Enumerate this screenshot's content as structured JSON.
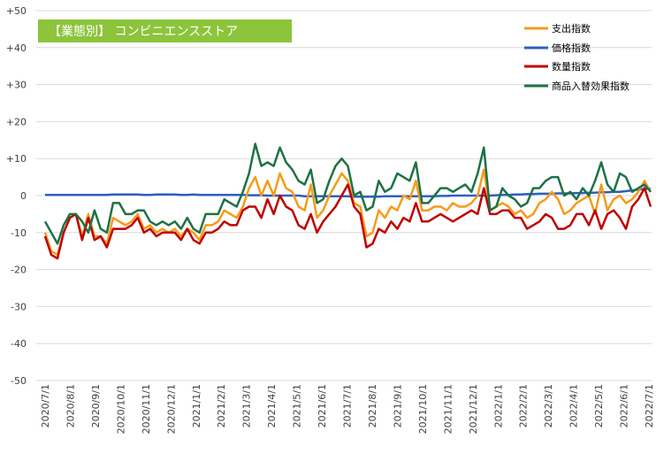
{
  "chart_data": {
    "type": "line",
    "title": "【業態別】 コンビニエンスストア",
    "title_bg": "#8cc43c",
    "xlabel": "",
    "ylabel": "",
    "ylim": [
      -50,
      50
    ],
    "yticks": [
      "+50",
      "+40",
      "+30",
      "+20",
      "+10",
      "0",
      "-10",
      "-20",
      "-30",
      "-40",
      "-50"
    ],
    "ytick_values": [
      50,
      40,
      30,
      20,
      10,
      0,
      -10,
      -20,
      -30,
      -40,
      -50
    ],
    "grid": true,
    "legend_position": "top-right",
    "x_labels": [
      "2020/7/1",
      "2020/8/1",
      "2020/9/1",
      "2020/10/1",
      "2020/11/1",
      "2020/12/1",
      "2021/1/1",
      "2021/2/1",
      "2021/3/1",
      "2021/4/1",
      "2021/5/1",
      "2021/6/1",
      "2021/7/1",
      "2021/8/1",
      "2021/9/1",
      "2021/10/1",
      "2021/11/1",
      "2021/12/1",
      "2022/1/1",
      "2022/2/1",
      "2022/3/1",
      "2022/4/1",
      "2022/5/1",
      "2022/6/1",
      "2022/7/1"
    ],
    "series": [
      {
        "name": "支出指数",
        "color": "#f59c1a",
        "values": [
          -10,
          -15,
          -16,
          -10,
          -6,
          -5,
          -11,
          -5,
          -11,
          -11,
          -13,
          -6,
          -7,
          -8,
          -7,
          -5,
          -9,
          -8,
          -10,
          -9,
          -10,
          -9,
          -11,
          -9,
          -10,
          -12,
          -8,
          -8,
          -7,
          -4,
          -5,
          -6,
          -3,
          2,
          5,
          0,
          4,
          0,
          6,
          2,
          1,
          -3,
          -4,
          3,
          -6,
          -4,
          0,
          3,
          6,
          4,
          -2,
          -3,
          -11,
          -10,
          -4,
          -6,
          -3,
          -4,
          0,
          -1,
          4,
          -4,
          -4,
          -3,
          -3,
          -4,
          -2,
          -3,
          -3,
          -2,
          0,
          7,
          -4,
          -3,
          -2,
          -3,
          -5,
          -4,
          -6,
          -5,
          -2,
          -1,
          1,
          -1,
          -5,
          -4,
          -2,
          -1,
          0,
          -5,
          3,
          -4,
          -1,
          0,
          -2,
          -1,
          1,
          4,
          1
        ],
        "sample_note": ""
      },
      {
        "name": "価格指数",
        "color": "#2e5fc0",
        "values": [
          0.2,
          0.2,
          0.2,
          0.2,
          0.2,
          0.2,
          0.2,
          0.2,
          0.2,
          0.2,
          0.2,
          0.3,
          0.3,
          0.3,
          0.3,
          0.3,
          0.2,
          0.2,
          0.3,
          0.3,
          0.3,
          0.3,
          0.2,
          0.2,
          0.3,
          0.2,
          0.2,
          0.2,
          0.2,
          0.2,
          0.2,
          0.2,
          0.2,
          0.1,
          0.1,
          0.1,
          0,
          0,
          0,
          0,
          0,
          0,
          -0.2,
          -0.2,
          -0.2,
          -0.2,
          -0.2,
          -0.2,
          -0.2,
          -0.2,
          -0.3,
          -0.3,
          -0.3,
          -0.3,
          -0.3,
          -0.2,
          -0.2,
          -0.2,
          -0.2,
          -0.2,
          -0.2,
          -0.2,
          -0.2,
          -0.2,
          -0.1,
          -0.1,
          0,
          0,
          0,
          0,
          0,
          0,
          0,
          0.1,
          0.2,
          0.2,
          0.3,
          0.3,
          0.4,
          0.4,
          0.5,
          0.5,
          0.5,
          0.6,
          0.6,
          0.6,
          0.7,
          0.7,
          0.8,
          0.8,
          0.9,
          0.9,
          1,
          1,
          1.2,
          1.4,
          1.6,
          1.8,
          1.9
        ]
      },
      {
        "name": "数量指数",
        "color": "#c00000",
        "values": [
          -11,
          -16,
          -17,
          -10,
          -6,
          -5,
          -12,
          -6,
          -12,
          -11,
          -14,
          -9,
          -9,
          -9,
          -8,
          -6,
          -10,
          -9,
          -11,
          -10,
          -10,
          -10,
          -12,
          -9,
          -12,
          -13,
          -10,
          -10,
          -9,
          -7,
          -8,
          -8,
          -4,
          -3,
          -3,
          -6,
          -1,
          -5,
          0,
          -3,
          -4,
          -8,
          -9,
          -5,
          -10,
          -7,
          -5,
          -3,
          0,
          3,
          -3,
          -5,
          -14,
          -13,
          -9,
          -10,
          -7,
          -9,
          -6,
          -7,
          -2,
          -7,
          -7,
          -6,
          -5,
          -6,
          -7,
          -6,
          -5,
          -4,
          -5,
          2,
          -5,
          -5,
          -4,
          -4,
          -6,
          -6,
          -9,
          -8,
          -7,
          -5,
          -6,
          -9,
          -9,
          -8,
          -5,
          -5,
          -8,
          -4,
          -9,
          -5,
          -4,
          -6,
          -9,
          -3,
          -1,
          2,
          -3
        ]
      },
      {
        "name": "商品入替効果指数",
        "color": "#1e7145",
        "values": [
          -7,
          -10,
          -13,
          -8,
          -5,
          -5,
          -7,
          -10,
          -4,
          -9,
          -10,
          -2,
          -2,
          -5,
          -5,
          -4,
          -4,
          -7,
          -8,
          -7,
          -8,
          -7,
          -9,
          -6,
          -9,
          -10,
          -5,
          -5,
          -5,
          -1,
          -2,
          -3,
          1,
          6,
          14,
          8,
          9,
          8,
          13,
          9,
          7,
          4,
          3,
          7,
          -2,
          -1,
          4,
          8,
          10,
          8,
          0,
          1,
          -4,
          -3,
          4,
          1,
          2,
          6,
          5,
          4,
          9,
          -2,
          -2,
          0,
          2,
          2,
          1,
          2,
          3,
          1,
          6,
          13,
          -4,
          -3,
          2,
          0,
          -1,
          -3,
          -2,
          2,
          2,
          4,
          5,
          5,
          0,
          1,
          -1,
          2,
          0,
          4,
          9,
          3,
          1,
          6,
          5,
          1,
          2,
          3,
          1
        ]
      }
    ]
  }
}
